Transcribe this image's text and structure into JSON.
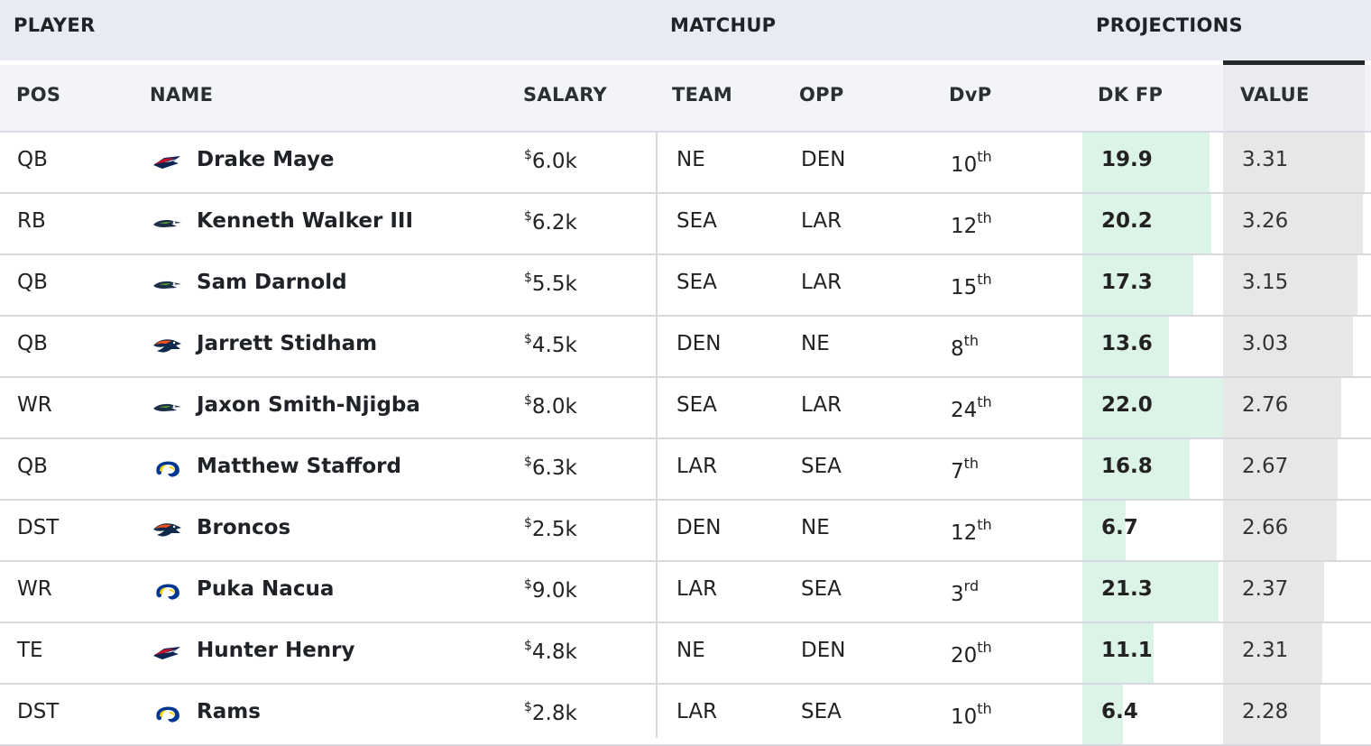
{
  "headers": {
    "groups": {
      "player": "PLAYER",
      "matchup": "MATCHUP",
      "projections": "PROJECTIONS"
    },
    "columns": {
      "pos": "POS",
      "name": "NAME",
      "salary": "SALARY",
      "team": "TEAM",
      "opp": "OPP",
      "dvp": "DvP",
      "dkfp": "DK FP",
      "value": "VALUE"
    }
  },
  "colors": {
    "dvp_bad": "#d6336c",
    "dvp_good": "#1e9e86",
    "fp_bar": "#dcf3e8",
    "value_bar": "#e7e7e7"
  },
  "rows": [
    {
      "pos": "QB",
      "logo": "patriots-logo-icon",
      "name": "Drake Maye",
      "salary_symbol": "$",
      "salary": "6.0k",
      "team": "NE",
      "opp": "DEN",
      "dvp_num": "10",
      "dvp_suffix": "th",
      "dvp_tone": "bad",
      "dkfp": "19.9",
      "value": "3.31"
    },
    {
      "pos": "RB",
      "logo": "seahawks-logo-icon",
      "name": "Kenneth Walker III",
      "salary_symbol": "$",
      "salary": "6.2k",
      "team": "SEA",
      "opp": "LAR",
      "dvp_num": "12",
      "dvp_suffix": "th",
      "dvp_tone": "neutral",
      "dkfp": "20.2",
      "value": "3.26"
    },
    {
      "pos": "QB",
      "logo": "seahawks-logo-icon",
      "name": "Sam Darnold",
      "salary_symbol": "$",
      "salary": "5.5k",
      "team": "SEA",
      "opp": "LAR",
      "dvp_num": "15",
      "dvp_suffix": "th",
      "dvp_tone": "neutral",
      "dkfp": "17.3",
      "value": "3.15"
    },
    {
      "pos": "QB",
      "logo": "broncos-logo-icon",
      "name": "Jarrett Stidham",
      "salary_symbol": "$",
      "salary": "4.5k",
      "team": "DEN",
      "opp": "NE",
      "dvp_num": "8",
      "dvp_suffix": "th",
      "dvp_tone": "bad",
      "dkfp": "13.6",
      "value": "3.03"
    },
    {
      "pos": "WR",
      "logo": "seahawks-logo-icon",
      "name": "Jaxon Smith-Njigba",
      "salary_symbol": "$",
      "salary": "8.0k",
      "team": "SEA",
      "opp": "LAR",
      "dvp_num": "24",
      "dvp_suffix": "th",
      "dvp_tone": "good",
      "dkfp": "22.0",
      "value": "2.76"
    },
    {
      "pos": "QB",
      "logo": "rams-logo-icon",
      "name": "Matthew Stafford",
      "salary_symbol": "$",
      "salary": "6.3k",
      "team": "LAR",
      "opp": "SEA",
      "dvp_num": "7",
      "dvp_suffix": "th",
      "dvp_tone": "bad",
      "dkfp": "16.8",
      "value": "2.67"
    },
    {
      "pos": "DST",
      "logo": "broncos-logo-icon",
      "name": "Broncos",
      "salary_symbol": "$",
      "salary": "2.5k",
      "team": "DEN",
      "opp": "NE",
      "dvp_num": "12",
      "dvp_suffix": "th",
      "dvp_tone": "neutral",
      "dkfp": "6.7",
      "value": "2.66"
    },
    {
      "pos": "WR",
      "logo": "rams-logo-icon",
      "name": "Puka Nacua",
      "salary_symbol": "$",
      "salary": "9.0k",
      "team": "LAR",
      "opp": "SEA",
      "dvp_num": "3",
      "dvp_suffix": "rd",
      "dvp_tone": "bad",
      "dkfp": "21.3",
      "value": "2.37"
    },
    {
      "pos": "TE",
      "logo": "patriots-logo-icon",
      "name": "Hunter Henry",
      "salary_symbol": "$",
      "salary": "4.8k",
      "team": "NE",
      "opp": "DEN",
      "dvp_num": "20",
      "dvp_suffix": "th",
      "dvp_tone": "neutral",
      "dkfp": "11.1",
      "value": "2.31"
    },
    {
      "pos": "DST",
      "logo": "rams-logo-icon",
      "name": "Rams",
      "salary_symbol": "$",
      "salary": "2.8k",
      "team": "LAR",
      "opp": "SEA",
      "dvp_num": "10",
      "dvp_suffix": "th",
      "dvp_tone": "bad",
      "dkfp": "6.4",
      "value": "2.28"
    }
  ]
}
